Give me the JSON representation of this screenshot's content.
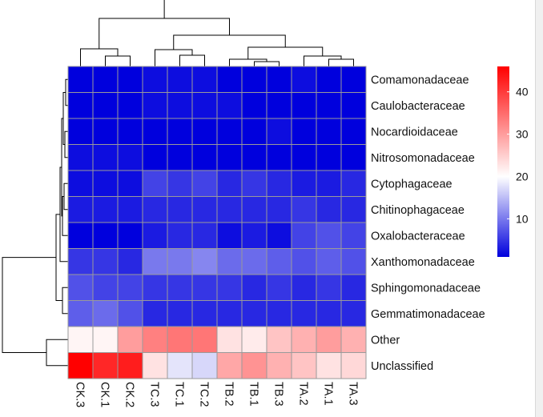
{
  "chart_data": {
    "type": "heatmap",
    "title": "",
    "rows": [
      "Comamonadaceae",
      "Caulobacteraceae",
      "Nocardioidaceae",
      "Nitrosomonadaceae",
      "Cytophagaceae",
      "Chitinophagaceae",
      "Oxalobacteraceae",
      "Xanthomonadaceae",
      "Sphingomonadaceae",
      "Gemmatimonadaceae",
      "Other",
      "Unclassified"
    ],
    "columns": [
      "CK.3",
      "CK.1",
      "CK.2",
      "TC.3",
      "TC.1",
      "TC.2",
      "TB.2",
      "TB.1",
      "TB.3",
      "TA.2",
      "TA.1",
      "TA.3"
    ],
    "values": [
      [
        1,
        1,
        1,
        2,
        2,
        2,
        1,
        1,
        1,
        2,
        1,
        1
      ],
      [
        1,
        1,
        1,
        2,
        2,
        2,
        2,
        1,
        1,
        1,
        1,
        1
      ],
      [
        1,
        1,
        1,
        1,
        1,
        1,
        1,
        1,
        2,
        1,
        1,
        1
      ],
      [
        2,
        2,
        2,
        1,
        1,
        1,
        1,
        1,
        1,
        1,
        1,
        1
      ],
      [
        2,
        2,
        2,
        6,
        5,
        6,
        4,
        5,
        4,
        3,
        3,
        4
      ],
      [
        3,
        3,
        3,
        4,
        4,
        4,
        4,
        4,
        4,
        5,
        4,
        4
      ],
      [
        1,
        1,
        1,
        3,
        4,
        4,
        2,
        3,
        2,
        6,
        7,
        6
      ],
      [
        5,
        5,
        4,
        10,
        10,
        11,
        9,
        9,
        8,
        7,
        8,
        7
      ],
      [
        7,
        6,
        6,
        5,
        5,
        5,
        5,
        4,
        5,
        4,
        5,
        4
      ],
      [
        8,
        9,
        7,
        4,
        4,
        4,
        4,
        4,
        4,
        4,
        4,
        4
      ],
      [
        21,
        21,
        30,
        33,
        34,
        34,
        23,
        22,
        26,
        28,
        30,
        28
      ],
      [
        46,
        42,
        43,
        23,
        18,
        17,
        29,
        31,
        28,
        26,
        23,
        24
      ]
    ],
    "colorscale": {
      "low": "#0000dd",
      "mid": "#ffffff",
      "high": "#ff0000",
      "min": 1,
      "mid_value": 20,
      "max": 46
    },
    "legend": {
      "ticks": [
        10,
        20,
        30,
        40
      ],
      "position": "right"
    }
  }
}
